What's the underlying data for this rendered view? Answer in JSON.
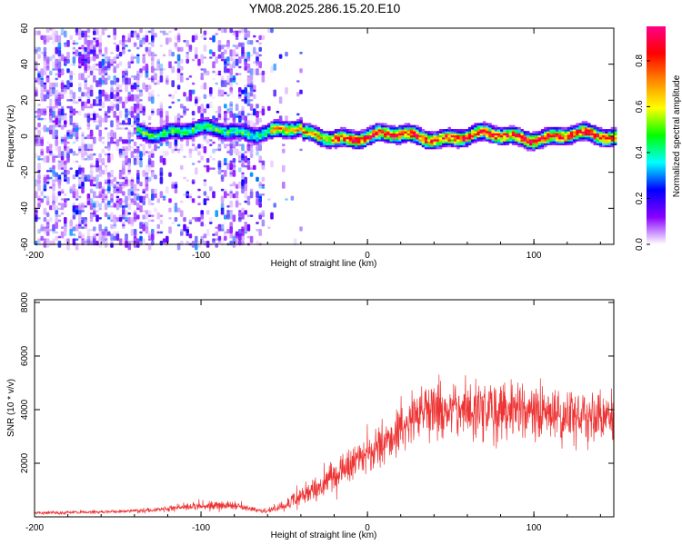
{
  "title": "YM08.2025.286.15.20.E10",
  "chart_data": [
    {
      "type": "heatmap",
      "name": "spectrogram",
      "xlabel": "Height of straight line (km)",
      "ylabel": "Frequency (Hz)",
      "xlim": [
        -200,
        148
      ],
      "ylim": [
        -60,
        60
      ],
      "xticks": [
        -200,
        -100,
        0,
        100
      ],
      "yticks": [
        -60,
        -40,
        -20,
        0,
        20,
        40,
        60
      ],
      "features": {
        "band_center_hz": 0,
        "band_halfwidth_hz": 6,
        "band_start_km": -140,
        "noise_region_km": [
          -200,
          -62
        ],
        "colorbar_label": "Normalized spectral amplitude",
        "colorbar_ticks": [
          0.0,
          0.2,
          0.4,
          0.6,
          0.8
        ],
        "colorbar_range": [
          0,
          0.95
        ],
        "colormap": [
          "#ffffff",
          "#8800ff",
          "#0000ff",
          "#00ffff",
          "#00ff00",
          "#ffff00",
          "#ff8800",
          "#ff0000",
          "#ff0088"
        ]
      }
    },
    {
      "type": "line",
      "name": "snr",
      "xlabel": "Height of straight line (km)",
      "ylabel": "SNR (10 * v/v)",
      "xlim": [
        -200,
        148
      ],
      "ylim": [
        0,
        8100
      ],
      "xticks": [
        -200,
        -100,
        0,
        100
      ],
      "yticks": [
        2000,
        4000,
        6000,
        8000
      ],
      "color": "#ee3333",
      "envelope": {
        "x": [
          -200,
          -160,
          -130,
          -110,
          -100,
          -90,
          -80,
          -70,
          -60,
          -50,
          -40,
          -30,
          -20,
          -10,
          0,
          10,
          20,
          30,
          40,
          60,
          80,
          100,
          120,
          148
        ],
        "mean": [
          150,
          180,
          250,
          350,
          420,
          450,
          420,
          300,
          200,
          450,
          750,
          1100,
          1500,
          2000,
          2300,
          2700,
          3300,
          3800,
          4000,
          4000,
          4000,
          3900,
          3800,
          3900
        ],
        "spread": [
          120,
          120,
          150,
          250,
          300,
          350,
          300,
          200,
          150,
          350,
          600,
          900,
          1100,
          1200,
          1300,
          1400,
          1600,
          1800,
          1900,
          1900,
          2000,
          1900,
          1800,
          1700
        ]
      }
    }
  ]
}
